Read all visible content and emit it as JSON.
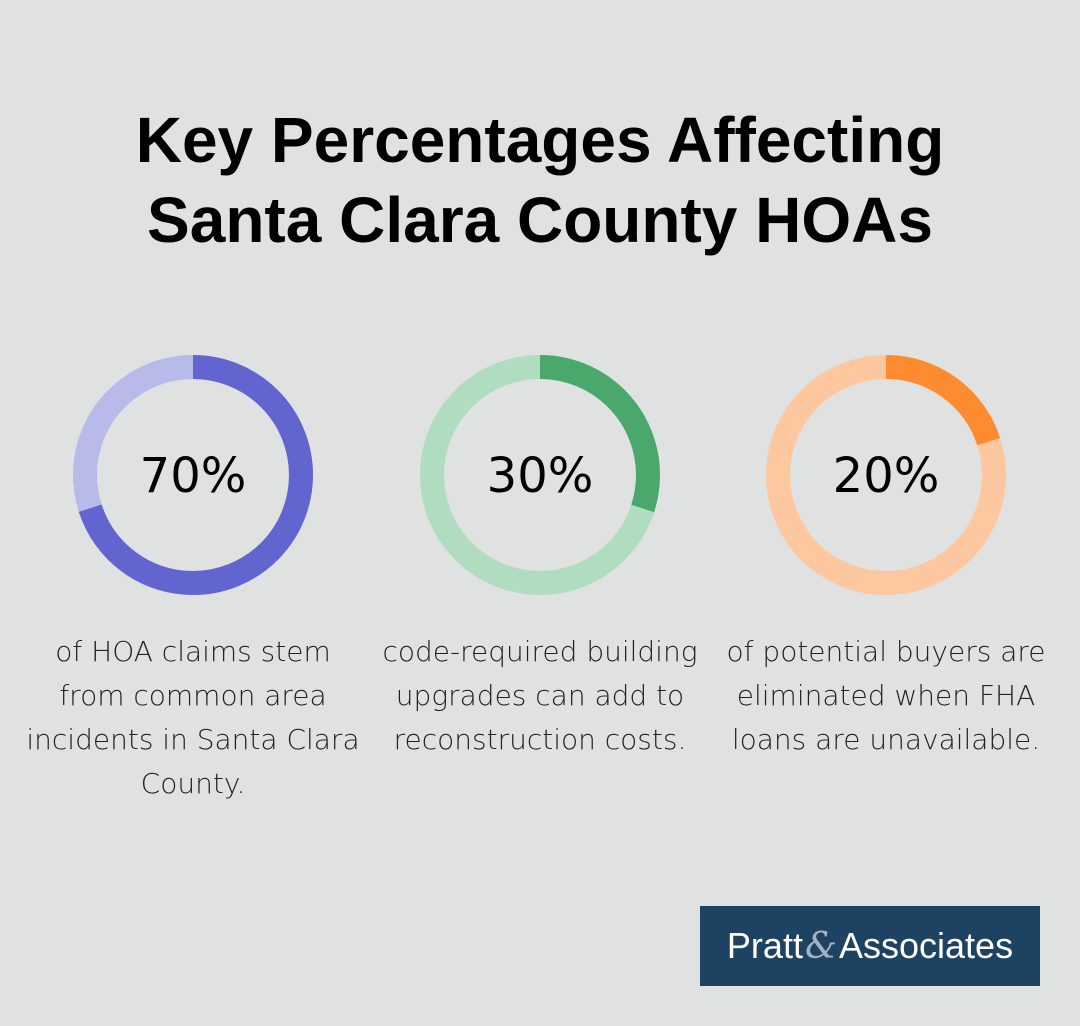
{
  "title_line1": "Key Percentages Affecting",
  "title_line2": "Santa Clara County HOAs",
  "chart_data": [
    {
      "type": "pie",
      "subtype": "donut",
      "value": 70,
      "label": "70%",
      "description": "of HOA claims stem from common area incidents in Santa Clara County.",
      "color": "#6264d0",
      "track_color": "#b8bbea"
    },
    {
      "type": "pie",
      "subtype": "donut",
      "value": 30,
      "label": "30%",
      "description": "code-required building upgrades can add to reconstruction costs.",
      "color": "#4ba86c",
      "track_color": "#b0dcc0"
    },
    {
      "type": "pie",
      "subtype": "donut",
      "value": 20,
      "label": "20%",
      "description": "of potential buyers are eliminated when FHA loans are unavailable.",
      "color": "#fd8b30",
      "track_color": "#fdc7a0"
    }
  ],
  "logo": {
    "part1": "Pratt",
    "amp": "&",
    "part2": "Associates"
  }
}
